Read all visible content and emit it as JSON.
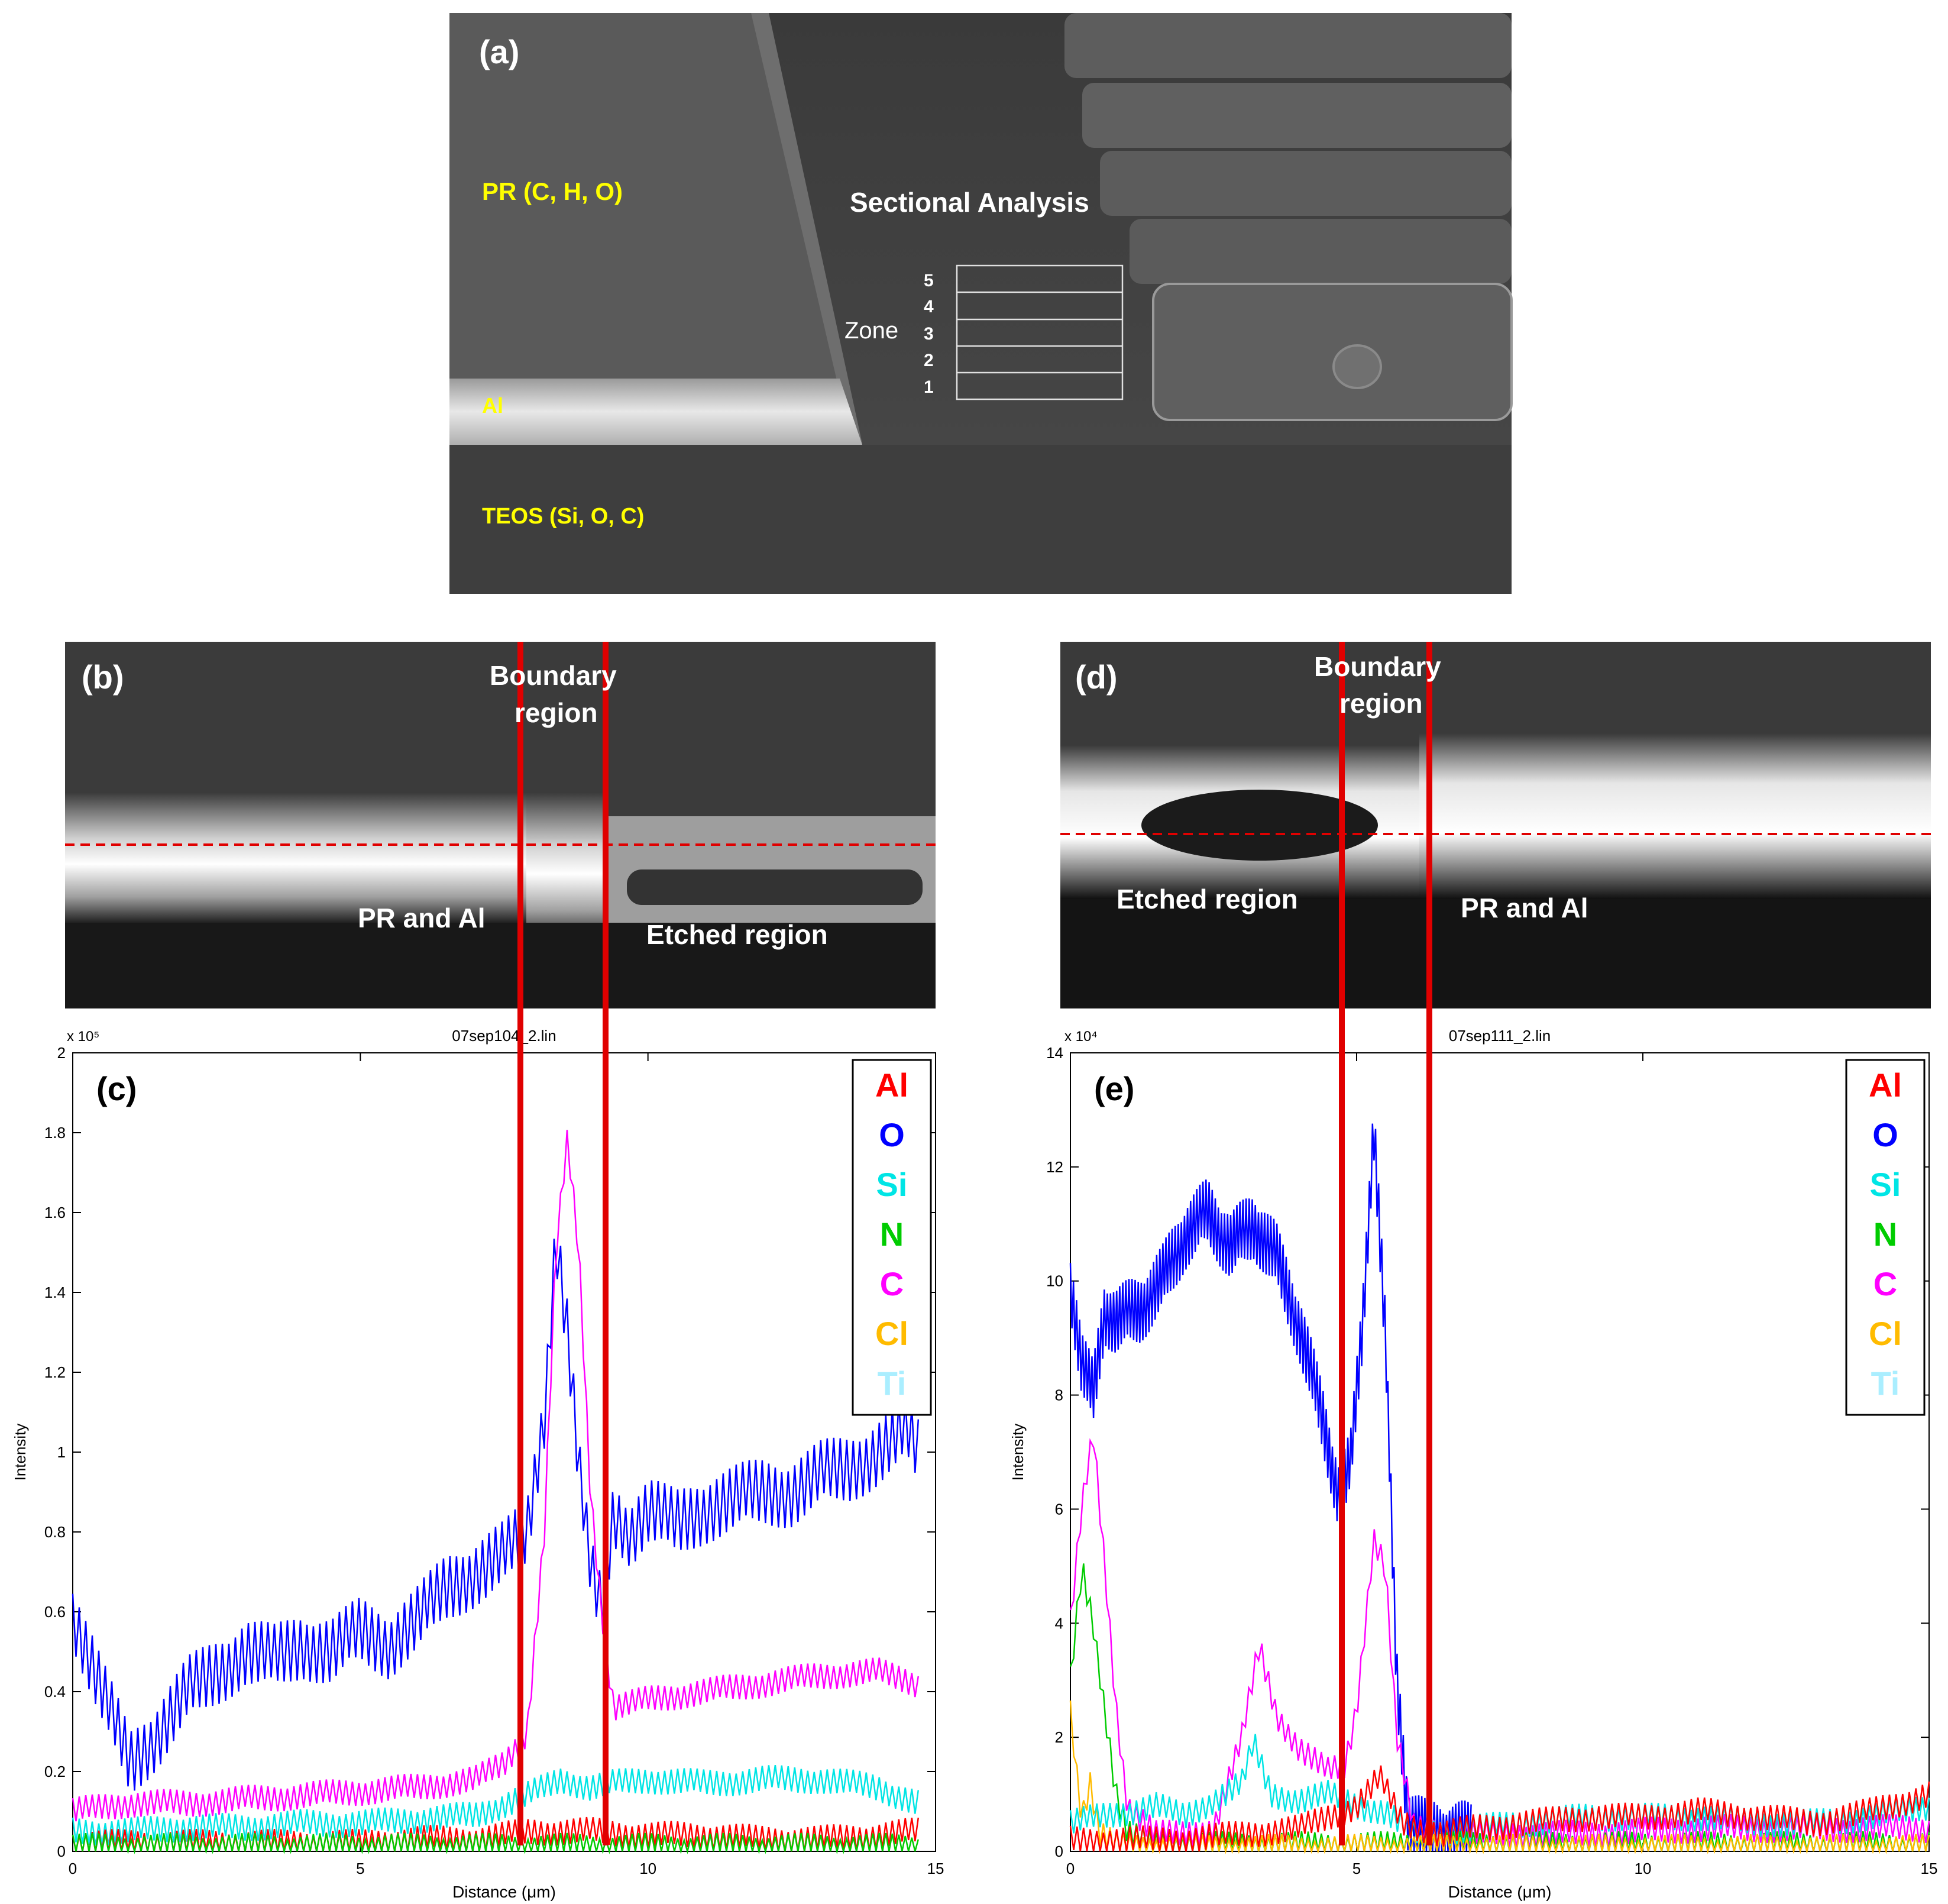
{
  "panel_a": {
    "tag": "(a)",
    "labels": {
      "pr": "PR (C, H, O)",
      "al": "Al",
      "teos": "TEOS (Si, O, C)",
      "sectional": "Sectional Analysis",
      "zone": "Zone"
    },
    "zones": [
      "5",
      "4",
      "3",
      "2",
      "1"
    ]
  },
  "panel_b": {
    "tag": "(b)",
    "boundary_line1": "Boundary",
    "boundary_line2": "region",
    "left_label": "PR and Al",
    "right_label": "Etched region"
  },
  "panel_d": {
    "tag": "(d)",
    "boundary_line1": "Boundary",
    "boundary_line2": "region",
    "left_label": "Etched region",
    "right_label": "PR and Al"
  },
  "colors": {
    "Al": "#ff0000",
    "O": "#0000ff",
    "Si": "#00e5e5",
    "N": "#00cc00",
    "C": "#ff00ff",
    "Cl": "#ffbb00",
    "Ti": "#aaeeff",
    "boundary": "#e00000"
  },
  "chart_data": [
    {
      "id": "c",
      "tag": "(c)",
      "type": "line",
      "title": "07sep104_2.lin",
      "xlabel": "Distance (μm)",
      "ylabel": "Intensity",
      "exponent": "x 10⁵",
      "xlim": [
        0,
        15
      ],
      "ylim": [
        0,
        2
      ],
      "xticks": [
        0,
        5,
        10,
        15
      ],
      "yticks": [
        0,
        0.2,
        0.4,
        0.6,
        0.8,
        1,
        1.2,
        1.4,
        1.6,
        1.8,
        2
      ],
      "ytick_labels": [
        "0",
        "0.2",
        "0.4",
        "0.6",
        "0.8",
        "1",
        "1.2",
        "1.4",
        "1.6",
        "1.8",
        "2"
      ],
      "legend": [
        "Al",
        "O",
        "Si",
        "N",
        "C",
        "Cl",
        "Ti"
      ],
      "legend_position": "top-right",
      "boundaries": [
        7.9,
        9.4
      ],
      "series": [
        {
          "name": "O",
          "x": [
            0,
            0.5,
            1,
            1.5,
            2,
            2.5,
            3,
            3.5,
            4,
            4.5,
            5,
            5.5,
            6,
            6.5,
            7,
            7.5,
            7.9,
            8.2,
            8.4,
            8.6,
            8.8,
            9.0,
            9.2,
            9.4,
            9.7,
            10,
            10.5,
            11,
            11.5,
            12,
            12.5,
            13,
            13.5,
            14,
            14.5,
            14.7
          ],
          "y": [
            0.6,
            0.4,
            0.22,
            0.3,
            0.4,
            0.45,
            0.5,
            0.48,
            0.52,
            0.5,
            0.55,
            0.52,
            0.58,
            0.66,
            0.7,
            0.74,
            0.8,
            1.1,
            1.55,
            1.3,
            0.95,
            0.7,
            0.6,
            0.85,
            0.8,
            0.85,
            0.82,
            0.86,
            0.88,
            0.9,
            0.9,
            0.94,
            0.96,
            1.0,
            1.05,
            1.0
          ]
        },
        {
          "name": "C",
          "x": [
            0,
            1,
            2,
            3,
            4,
            5,
            6,
            7,
            7.5,
            7.9,
            8.2,
            8.4,
            8.6,
            8.8,
            9.0,
            9.2,
            9.4,
            10,
            11,
            12,
            13,
            14,
            14.7
          ],
          "y": [
            0.1,
            0.12,
            0.12,
            0.13,
            0.14,
            0.15,
            0.16,
            0.18,
            0.22,
            0.3,
            0.8,
            1.5,
            1.78,
            1.5,
            0.9,
            0.6,
            0.36,
            0.38,
            0.4,
            0.42,
            0.44,
            0.45,
            0.42
          ]
        },
        {
          "name": "Si",
          "x": [
            0,
            1,
            2,
            3,
            4,
            5,
            6,
            7,
            7.9,
            8.5,
            9,
            9.4,
            10,
            11,
            12,
            13,
            14,
            14.7
          ],
          "y": [
            0.05,
            0.05,
            0.06,
            0.06,
            0.07,
            0.07,
            0.08,
            0.09,
            0.14,
            0.18,
            0.16,
            0.17,
            0.18,
            0.17,
            0.18,
            0.18,
            0.16,
            0.12
          ]
        },
        {
          "name": "Al",
          "x": [
            0,
            1,
            2,
            3,
            4,
            5,
            6,
            7,
            8,
            9,
            10,
            11,
            12,
            13,
            14,
            14.7
          ],
          "y": [
            0.02,
            0.02,
            0.02,
            0.02,
            0.02,
            0.02,
            0.03,
            0.03,
            0.05,
            0.05,
            0.04,
            0.04,
            0.03,
            0.03,
            0.04,
            0.05
          ]
        },
        {
          "name": "N",
          "x": [
            0,
            2,
            4,
            6,
            8,
            10,
            12,
            14,
            14.7
          ],
          "y": [
            0.01,
            0.01,
            0.01,
            0.01,
            0.01,
            0.01,
            0.01,
            0.01,
            0.01
          ]
        }
      ]
    },
    {
      "id": "e",
      "tag": "(e)",
      "type": "line",
      "title": "07sep111_2.lin",
      "xlabel": "Distance (μm)",
      "ylabel": "Intensity",
      "exponent": "x 10⁴",
      "xlim": [
        0,
        15
      ],
      "ylim": [
        0,
        14
      ],
      "xticks": [
        0,
        5,
        10,
        15
      ],
      "yticks": [
        0,
        2,
        4,
        6,
        8,
        10,
        12,
        14
      ],
      "ytick_labels": [
        "0",
        "2",
        "4",
        "6",
        "8",
        "10",
        "12",
        "14"
      ],
      "legend": [
        "Al",
        "O",
        "Si",
        "N",
        "C",
        "Cl",
        "Ti"
      ],
      "legend_position": "top-right",
      "boundaries": [
        4.85,
        6.4
      ],
      "series": [
        {
          "name": "O",
          "x": [
            0,
            0.2,
            0.4,
            0.6,
            0.8,
            1.2,
            1.6,
            2.0,
            2.4,
            2.8,
            3.2,
            3.6,
            4.0,
            4.4,
            4.7,
            4.9,
            5.1,
            5.3,
            5.5,
            5.7,
            5.9,
            6.2,
            6.5,
            7
          ],
          "y": [
            10,
            8.5,
            8.0,
            9.5,
            9.3,
            9.5,
            10.0,
            10.8,
            11.2,
            10.6,
            11.0,
            10.4,
            9.2,
            7.6,
            6.2,
            6.8,
            9.2,
            12.8,
            9.0,
            3.0,
            0.6,
            0.3,
            0.3,
            0.25
          ]
        },
        {
          "name": "C",
          "x": [
            0,
            0.2,
            0.4,
            0.6,
            0.8,
            1.0,
            1.5,
            2.0,
            2.5,
            3.0,
            3.3,
            3.6,
            4.0,
            4.5,
            4.8,
            5.0,
            5.3,
            5.5,
            5.7,
            6.0,
            7,
            9,
            11,
            13,
            15
          ],
          "y": [
            4.0,
            6.0,
            7.3,
            5.0,
            2.5,
            0.8,
            0.3,
            0.3,
            0.4,
            2.0,
            3.6,
            2.4,
            1.8,
            1.4,
            1.5,
            2.5,
            5.5,
            5.0,
            2.0,
            0.4,
            0.3,
            0.3,
            0.4,
            0.4,
            0.4
          ]
        },
        {
          "name": "N",
          "x": [
            0,
            0.2,
            0.4,
            0.6,
            0.8,
            1.0,
            1.5,
            2,
            4,
            6,
            8,
            10,
            12,
            14,
            15
          ],
          "y": [
            3.0,
            5.0,
            4.0,
            2.5,
            1.0,
            0.3,
            0.1,
            0.1,
            0.1,
            0.1,
            0.1,
            0.1,
            0.1,
            0.1,
            0.1
          ]
        },
        {
          "name": "Cl",
          "x": [
            0,
            0.1,
            0.2,
            0.35,
            0.5,
            0.8,
            1.5,
            3,
            6,
            10,
            15
          ],
          "y": [
            2.5,
            1.5,
            0.6,
            1.2,
            0.3,
            0.1,
            0.05,
            0.05,
            0.05,
            0.05,
            0.05
          ]
        },
        {
          "name": "Si",
          "x": [
            0,
            0.5,
            1,
            1.5,
            2,
            2.5,
            3,
            3.2,
            3.5,
            4,
            4.5,
            5,
            5.5,
            6,
            7,
            8,
            9,
            10,
            11,
            12,
            13,
            14,
            15
          ],
          "y": [
            0.5,
            0.6,
            0.7,
            0.8,
            0.6,
            0.9,
            1.2,
            1.9,
            1.0,
            0.9,
            1.0,
            0.8,
            0.7,
            0.3,
            0.4,
            0.5,
            0.6,
            0.6,
            0.6,
            0.5,
            0.5,
            0.6,
            0.8
          ]
        },
        {
          "name": "Al",
          "x": [
            0,
            1,
            2,
            3,
            4,
            5,
            5.4,
            5.8,
            6.5,
            7,
            8,
            9,
            10,
            11,
            12,
            13,
            14,
            15
          ],
          "y": [
            0.2,
            0.2,
            0.2,
            0.3,
            0.4,
            0.8,
            1.3,
            0.5,
            0.3,
            0.4,
            0.5,
            0.6,
            0.6,
            0.7,
            0.6,
            0.5,
            0.7,
            1.0
          ]
        }
      ]
    }
  ]
}
